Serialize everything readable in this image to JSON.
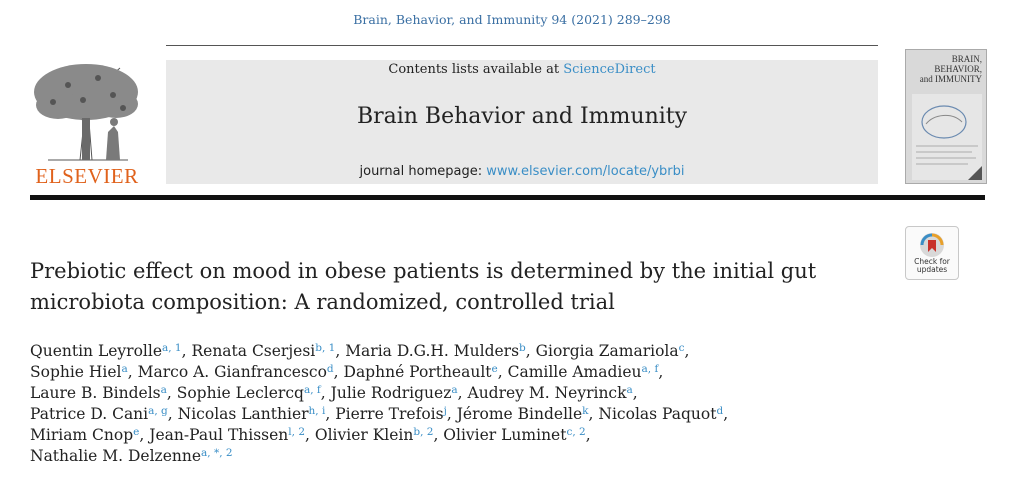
{
  "header": {
    "citation": "Brain, Behavior, and Immunity 94 (2021) 289–298",
    "contents_prefix": "Contents lists available at ",
    "contents_link": "ScienceDirect",
    "journal_title": "Brain Behavior and Immunity",
    "homepage_prefix": "journal homepage: ",
    "homepage_link": "www.elsevier.com/locate/ybrbi",
    "publisher_logo_text": "ELSEVIER",
    "cover_title_lines": [
      "BRAIN,",
      "BEHAVIOR,",
      "and IMMUNITY"
    ]
  },
  "check_updates": {
    "line1": "Check for",
    "line2": "updates"
  },
  "article": {
    "title": "Prebiotic effect on mood in obese patients is determined by the initial gut microbiota composition: A randomized, controlled trial"
  },
  "authors": [
    [
      {
        "name": "Quentin Leyrolle",
        "aff": "a, 1",
        "sep": ", "
      },
      {
        "name": "Renata Cserjesi",
        "aff": "b, 1",
        "sep": ", "
      },
      {
        "name": "Maria D.G.H. Mulders",
        "aff": "b",
        "sep": ", "
      },
      {
        "name": "Giorgia Zamariola",
        "aff": "c",
        "sep": ","
      }
    ],
    [
      {
        "name": "Sophie Hiel",
        "aff": "a",
        "sep": ", "
      },
      {
        "name": "Marco A. Gianfrancesco",
        "aff": "d",
        "sep": ", "
      },
      {
        "name": "Daphné Portheault",
        "aff": "e",
        "sep": ", "
      },
      {
        "name": "Camille Amadieu",
        "aff": "a, f",
        "sep": ","
      }
    ],
    [
      {
        "name": "Laure B. Bindels",
        "aff": "a",
        "sep": ", "
      },
      {
        "name": "Sophie Leclercq",
        "aff": "a, f",
        "sep": ", "
      },
      {
        "name": "Julie Rodriguez",
        "aff": "a",
        "sep": ", "
      },
      {
        "name": "Audrey M. Neyrinck",
        "aff": "a",
        "sep": ","
      }
    ],
    [
      {
        "name": "Patrice D. Cani",
        "aff": "a, g",
        "sep": ", "
      },
      {
        "name": "Nicolas Lanthier",
        "aff": "h, i",
        "sep": ", "
      },
      {
        "name": "Pierre Trefois",
        "aff": "j",
        "sep": ", "
      },
      {
        "name": "Jérome Bindelle",
        "aff": "k",
        "sep": ", "
      },
      {
        "name": "Nicolas Paquot",
        "aff": "d",
        "sep": ","
      }
    ],
    [
      {
        "name": "Miriam Cnop",
        "aff": "e",
        "sep": ", "
      },
      {
        "name": "Jean-Paul Thissen",
        "aff": "l, 2",
        "sep": ", "
      },
      {
        "name": "Olivier Klein",
        "aff": "b, 2",
        "sep": ", "
      },
      {
        "name": "Olivier Luminet",
        "aff": "c, 2",
        "sep": ","
      }
    ],
    [
      {
        "name": "Nathalie M. Delzenne",
        "aff": "a, *, 2",
        "sep": ""
      }
    ]
  ]
}
